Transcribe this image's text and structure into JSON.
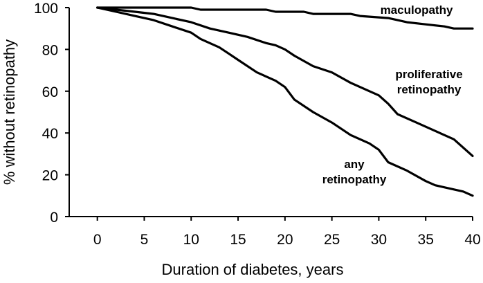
{
  "chart_data": {
    "type": "line",
    "title": "",
    "xlabel": "Duration of diabetes, years",
    "ylabel": "% without retinopathy",
    "xlim": [
      -3,
      40
    ],
    "ylim": [
      0,
      100
    ],
    "xticks": [
      0,
      5,
      10,
      15,
      20,
      25,
      30,
      35,
      40
    ],
    "yticks": [
      0,
      20,
      40,
      60,
      80,
      100
    ],
    "grid": false,
    "legend": "none",
    "series": [
      {
        "name": "maculopathy",
        "label_lines": [
          "maculopathy"
        ],
        "points": [
          [
            0,
            100
          ],
          [
            10,
            100
          ],
          [
            11,
            99
          ],
          [
            18,
            99
          ],
          [
            19,
            98
          ],
          [
            22,
            98
          ],
          [
            23,
            97
          ],
          [
            27,
            97
          ],
          [
            28,
            96
          ],
          [
            31,
            95
          ],
          [
            33,
            93
          ],
          [
            35,
            92
          ],
          [
            37,
            91
          ],
          [
            38,
            90
          ],
          [
            40,
            90
          ]
        ]
      },
      {
        "name": "proliferative retinopathy",
        "label_lines": [
          "proliferative",
          "retinopathy"
        ],
        "points": [
          [
            0,
            100
          ],
          [
            2,
            99
          ],
          [
            4,
            98
          ],
          [
            6,
            97
          ],
          [
            8,
            95
          ],
          [
            10,
            93
          ],
          [
            12,
            90
          ],
          [
            14,
            88
          ],
          [
            16,
            86
          ],
          [
            18,
            83
          ],
          [
            19,
            82
          ],
          [
            20,
            80
          ],
          [
            21,
            77
          ],
          [
            23,
            72
          ],
          [
            25,
            69
          ],
          [
            27,
            64
          ],
          [
            29,
            60
          ],
          [
            30,
            58
          ],
          [
            31,
            54
          ],
          [
            32,
            49
          ],
          [
            34,
            45
          ],
          [
            36,
            41
          ],
          [
            38,
            37
          ],
          [
            40,
            29
          ]
        ]
      },
      {
        "name": "any retinopathy",
        "label_lines": [
          "any",
          "retinopathy"
        ],
        "points": [
          [
            0,
            100
          ],
          [
            2,
            98
          ],
          [
            4,
            96
          ],
          [
            6,
            94
          ],
          [
            8,
            91
          ],
          [
            10,
            88
          ],
          [
            11,
            85
          ],
          [
            13,
            81
          ],
          [
            14,
            78
          ],
          [
            15,
            75
          ],
          [
            17,
            69
          ],
          [
            19,
            65
          ],
          [
            20,
            62
          ],
          [
            21,
            56
          ],
          [
            23,
            50
          ],
          [
            25,
            45
          ],
          [
            27,
            39
          ],
          [
            29,
            35
          ],
          [
            30,
            32
          ],
          [
            31,
            26
          ],
          [
            33,
            22
          ],
          [
            35,
            17
          ],
          [
            36,
            15
          ],
          [
            39,
            12
          ],
          [
            40,
            10
          ]
        ]
      }
    ],
    "annotations": [
      {
        "series": "maculopathy",
        "text": "maculopathy"
      },
      {
        "series": "proliferative retinopathy",
        "text": "proliferative retinopathy"
      },
      {
        "series": "any retinopathy",
        "text": "any retinopathy"
      }
    ]
  }
}
